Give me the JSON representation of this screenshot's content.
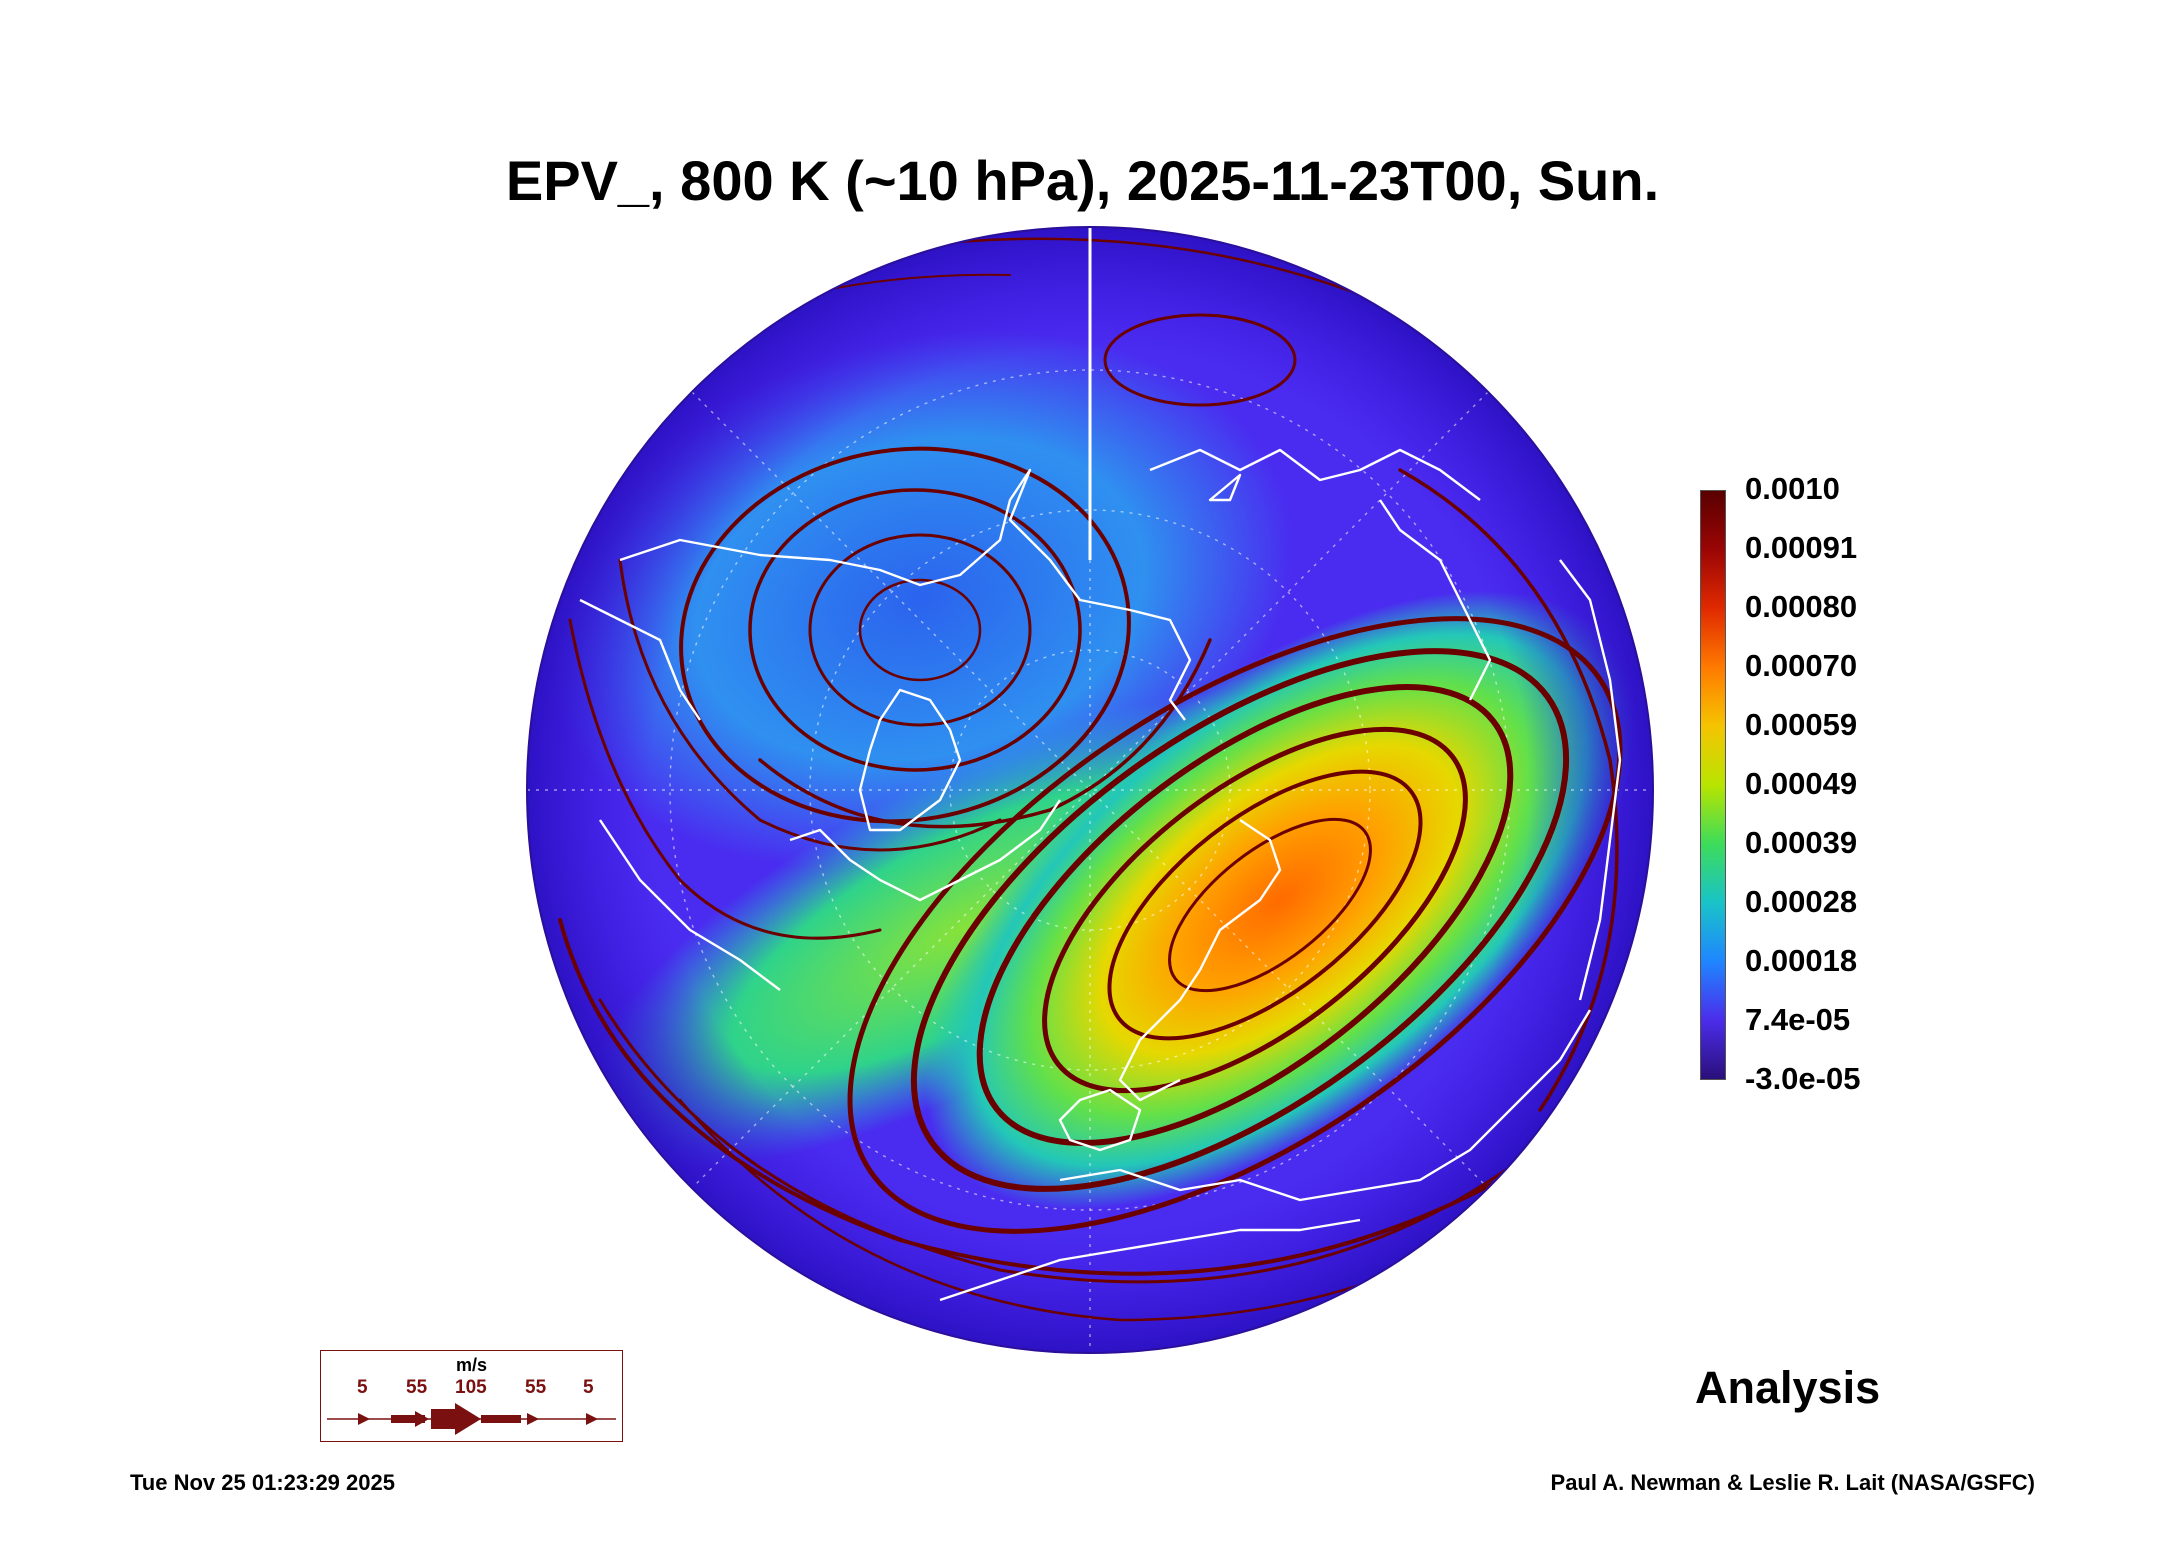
{
  "title": "EPV_, 800 K (~10 hPa), 2025-11-23T00, Sun.",
  "colorbar": {
    "labels": [
      "0.0010",
      "0.00091",
      "0.00080",
      "0.00070",
      "0.00059",
      "0.00049",
      "0.00039",
      "0.00028",
      "0.00018",
      "7.4e-05",
      "-3.0e-05"
    ],
    "colors": [
      "#5a0000",
      "#9b0505",
      "#e02a00",
      "#ff7a00",
      "#f5c400",
      "#b8e400",
      "#3ddc5a",
      "#19c3c8",
      "#1f86ff",
      "#4b2dea",
      "#2a0f7a"
    ]
  },
  "wind_legend": {
    "unit": "m/s",
    "speeds": [
      "5",
      "55",
      "105",
      "55",
      "5"
    ]
  },
  "stamp": "Analysis",
  "timestamp": "Tue Nov 25 01:23:29 2025",
  "credit": "Paul A. Newman & Leslie R. Lait (NASA/GSFC)",
  "colors": {
    "disk_edge": "#3a10d8",
    "streamline": "#6a0000",
    "coastline": "#ffffff"
  }
}
